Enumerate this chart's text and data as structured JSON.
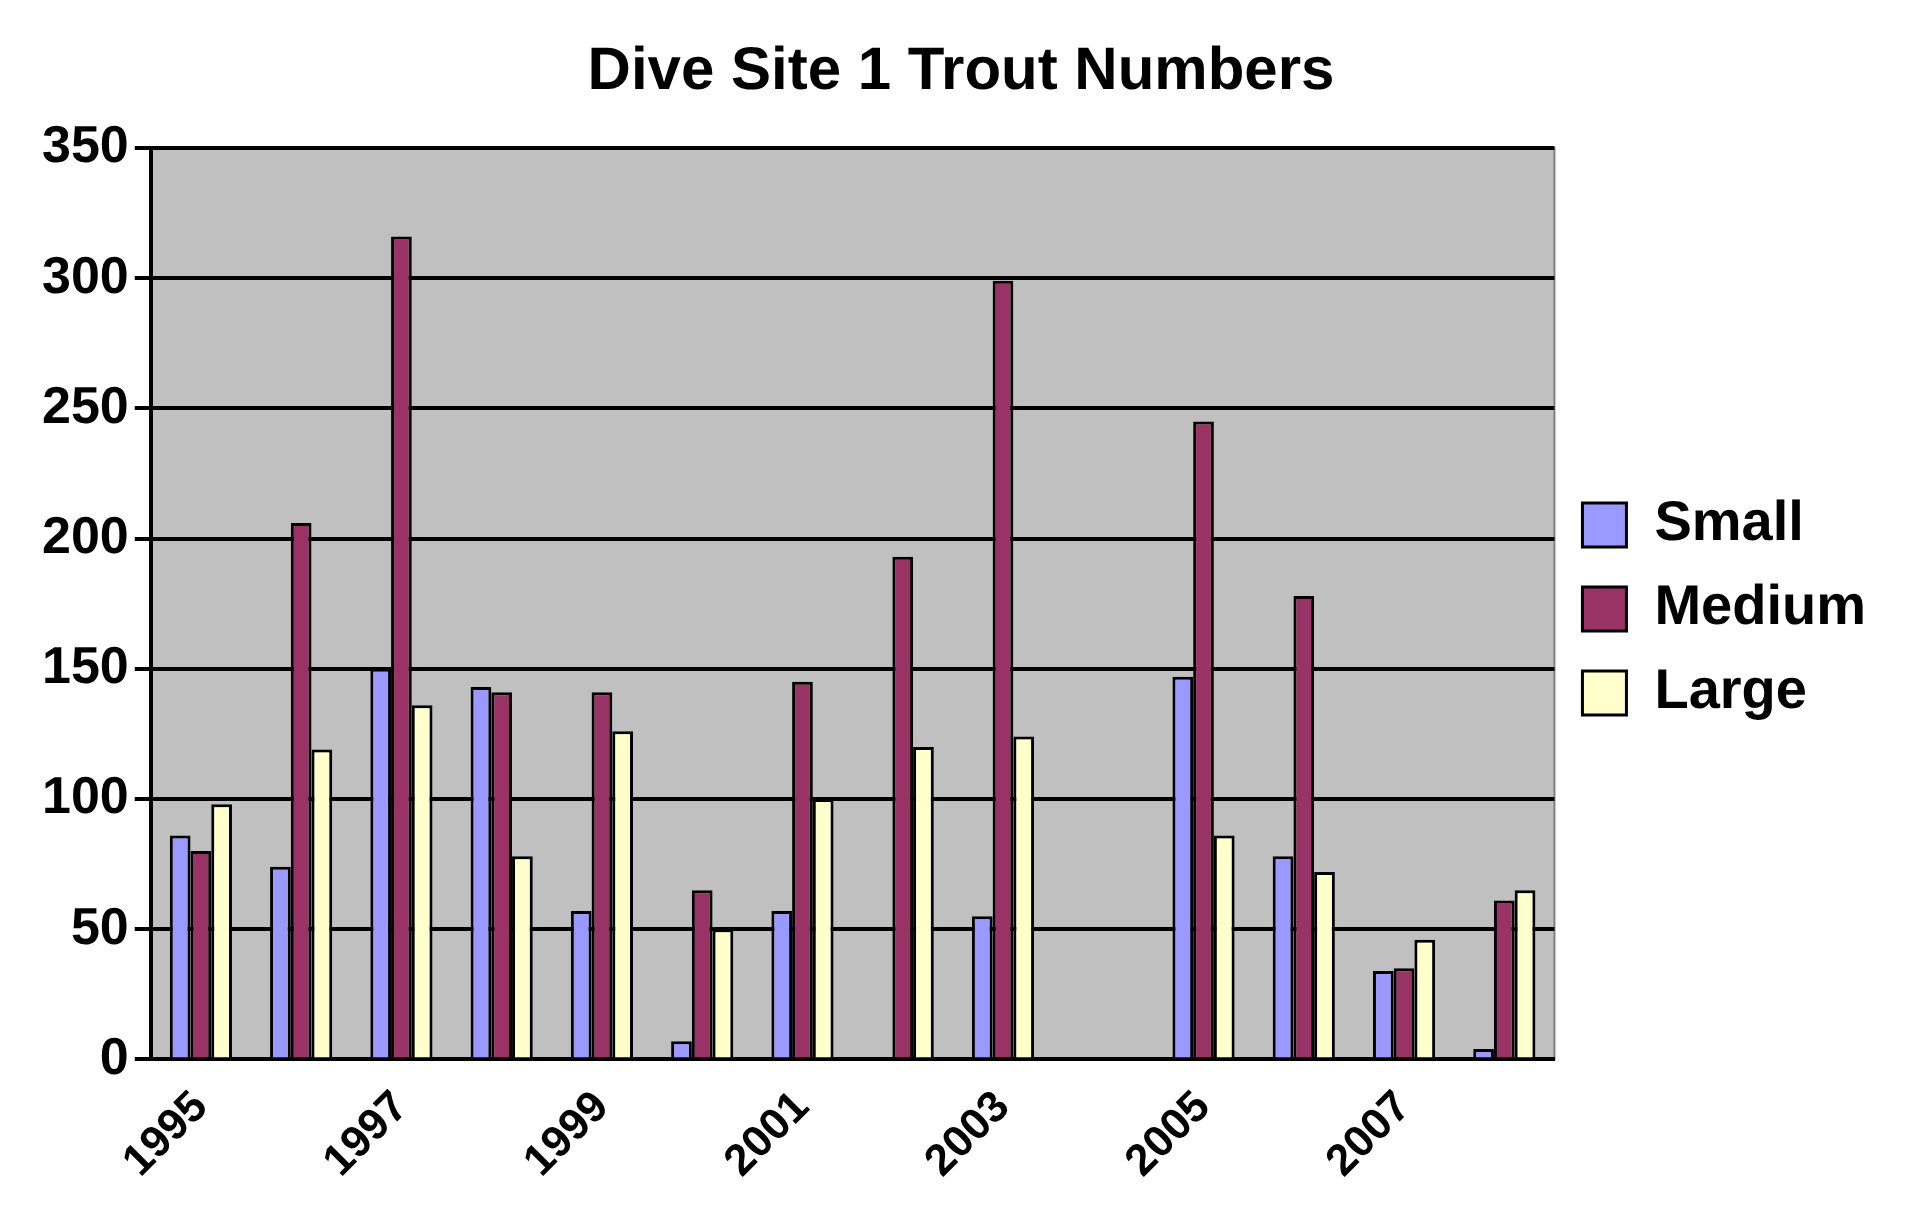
{
  "chart_data": {
    "type": "bar",
    "title": "Dive Site 1 Trout Numbers",
    "categories": [
      "1995",
      null,
      "1997",
      null,
      "1999",
      null,
      "2001",
      null,
      "2003",
      null,
      "2005",
      null,
      "2007",
      null
    ],
    "series": [
      {
        "name": "Small",
        "color": "#9999ff",
        "values": [
          86,
          74,
          150,
          143,
          57,
          7,
          57,
          null,
          55,
          null,
          147,
          78,
          34,
          4
        ]
      },
      {
        "name": "Medium",
        "color": "#993366",
        "values": [
          80,
          206,
          316,
          141,
          141,
          65,
          145,
          193,
          299,
          null,
          245,
          178,
          35,
          61
        ]
      },
      {
        "name": "Large",
        "color": "#ffffcc",
        "values": [
          98,
          119,
          136,
          78,
          126,
          50,
          100,
          120,
          124,
          null,
          86,
          72,
          46,
          65
        ]
      }
    ],
    "ylim": [
      0,
      350
    ],
    "yticks": [
      0,
      50,
      100,
      150,
      200,
      250,
      300,
      350
    ],
    "grid": "y",
    "legend": "right"
  }
}
